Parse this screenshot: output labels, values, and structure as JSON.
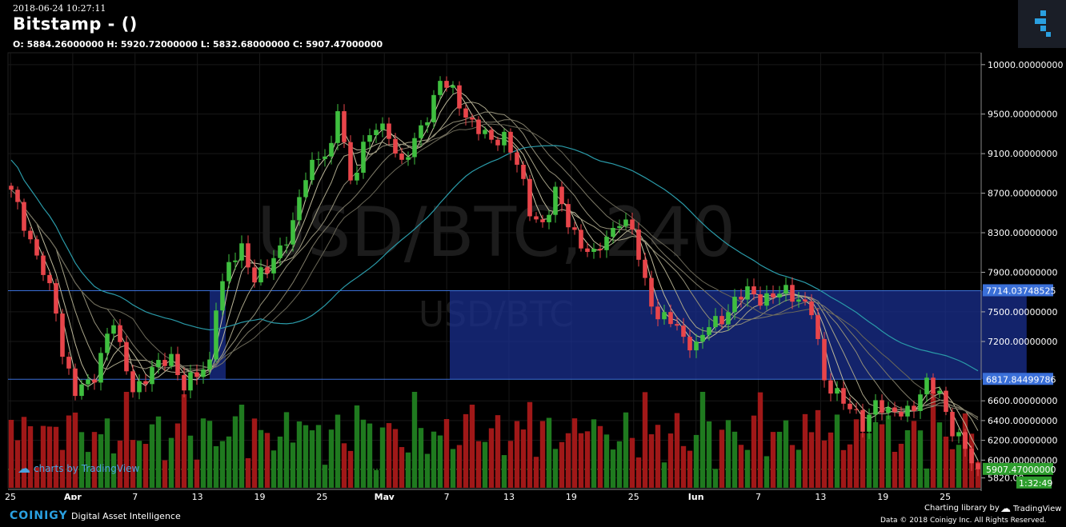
{
  "header": {
    "timestamp": "2018-06-24 10:27:11",
    "title": "Bitstamp -  ()",
    "ohlc": "O: 5884.26000000 H: 5920.72000000 L: 5832.68000000 C: 5907.47000000"
  },
  "watermark": {
    "big": "USD/BTC, 240",
    "small": "USD/BTC"
  },
  "badge": {
    "text": "charts by TradingView"
  },
  "footer": {
    "brand": "COINIGY",
    "tagline": "Digital Asset Intelligence",
    "charting": "Charting library by",
    "tv": "TradingView",
    "copyright": "Data © 2018  Coinigy Inc. All Rights Reserved."
  },
  "colors": {
    "up": "#3fbf3f",
    "down": "#e8454a",
    "volume_up": "#1f7a1f",
    "volume_down": "#a01818",
    "zone": "#1a2f8f",
    "long_ma": "#2a9aa8",
    "accent": "#2aa0e0"
  },
  "chart_data": {
    "type": "candlestick",
    "ylim": [
      5720,
      10120
    ],
    "y_ticks": [
      10000,
      9500,
      9100,
      8700,
      8300,
      7900,
      7500,
      7200,
      6600,
      6400,
      6200,
      6000,
      5820
    ],
    "y_tick_labels": [
      "10000.00000000",
      "9500.00000000",
      "9100.00000000",
      "8700.00000000",
      "8300.00000000",
      "7900.00000000",
      "7500.00000000",
      "7200.00000000",
      "6600.00000000",
      "6400.00000000",
      "6200.00000000",
      "6000.00000000",
      "5820.00"
    ],
    "x_ticks": [
      "25",
      "Apr",
      "7",
      "13",
      "19",
      "25",
      "May",
      "7",
      "13",
      "19",
      "25",
      "Jun",
      "7",
      "13",
      "19",
      "25"
    ],
    "price_markers": [
      {
        "label": "7714.03748525",
        "value": 7714.03748525,
        "color": "#3a6fd8"
      },
      {
        "label": "6817.84499786",
        "value": 6817.84499786,
        "color": "#3a6fd8"
      },
      {
        "label": "5907.47000000",
        "value": 5907.47,
        "color": "#2e9e2e"
      },
      {
        "label": "1:32:49",
        "value": 5820,
        "color": "#2e9e2e"
      }
    ],
    "zone": {
      "start_day": 69,
      "end_day": 86,
      "top": 7714.03748525,
      "bottom": 6817.84499786
    },
    "last_close": 5907.47,
    "key_points": [
      [
        0,
        8700
      ],
      [
        2,
        8400
      ],
      [
        5,
        7900
      ],
      [
        7,
        7500
      ],
      [
        8,
        7100
      ],
      [
        10,
        6700
      ],
      [
        12,
        6750
      ],
      [
        13,
        6850
      ],
      [
        15,
        7300
      ],
      [
        16,
        7400
      ],
      [
        17,
        7100
      ],
      [
        19,
        6720
      ],
      [
        22,
        6900
      ],
      [
        25,
        7050
      ],
      [
        27,
        6750
      ],
      [
        29,
        6850
      ],
      [
        31,
        7000
      ],
      [
        32,
        7600
      ],
      [
        34,
        7950
      ],
      [
        36,
        8150
      ],
      [
        38,
        7850
      ],
      [
        40,
        7900
      ],
      [
        42,
        8150
      ],
      [
        44,
        8400
      ],
      [
        46,
        8850
      ],
      [
        48,
        9100
      ],
      [
        50,
        9150
      ],
      [
        51,
        9550
      ],
      [
        53,
        8800
      ],
      [
        55,
        9200
      ],
      [
        57,
        9350
      ],
      [
        59,
        9300
      ],
      [
        61,
        9000
      ],
      [
        63,
        9200
      ],
      [
        65,
        9500
      ],
      [
        67,
        9850
      ],
      [
        69,
        9700
      ],
      [
        71,
        9500
      ],
      [
        73,
        9350
      ],
      [
        75,
        9200
      ],
      [
        77,
        9300
      ],
      [
        79,
        9000
      ],
      [
        81,
        8500
      ],
      [
        83,
        8400
      ],
      [
        85,
        8700
      ],
      [
        87,
        8400
      ],
      [
        89,
        8200
      ],
      [
        91,
        8050
      ],
      [
        93,
        8250
      ],
      [
        95,
        8450
      ],
      [
        97,
        8300
      ],
      [
        99,
        7800
      ],
      [
        101,
        7450
      ],
      [
        103,
        7400
      ],
      [
        105,
        7250
      ],
      [
        107,
        7150
      ],
      [
        109,
        7350
      ],
      [
        111,
        7450
      ],
      [
        113,
        7600
      ],
      [
        115,
        7700
      ],
      [
        117,
        7650
      ],
      [
        119,
        7650
      ],
      [
        121,
        7700
      ],
      [
        123,
        7650
      ],
      [
        125,
        7500
      ],
      [
        127,
        6800
      ],
      [
        129,
        6700
      ],
      [
        131,
        6500
      ],
      [
        133,
        6350
      ],
      [
        135,
        6600
      ],
      [
        137,
        6450
      ],
      [
        139,
        6500
      ],
      [
        141,
        6550
      ],
      [
        143,
        6750
      ],
      [
        145,
        6700
      ],
      [
        147,
        6300
      ],
      [
        149,
        6100
      ],
      [
        151,
        5907
      ]
    ]
  }
}
